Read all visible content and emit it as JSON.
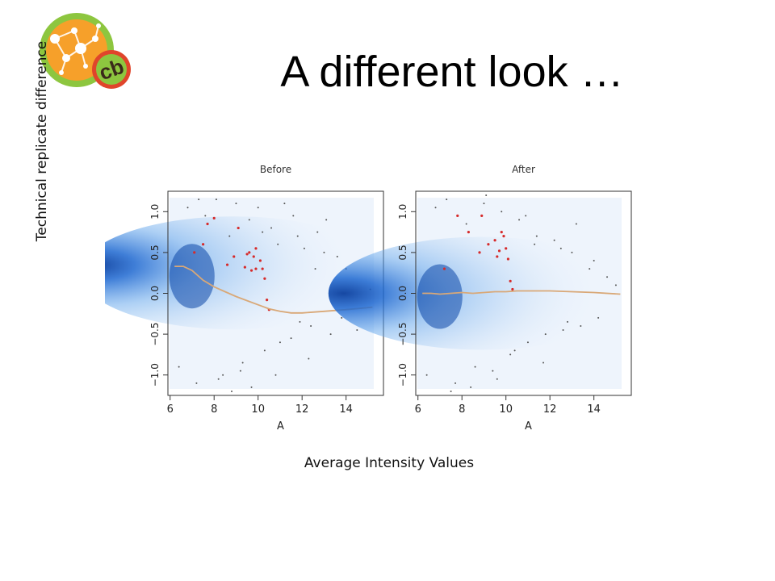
{
  "slide": {
    "title": "A different look …",
    "y_axis_caption": "Technical replicate difference",
    "x_axis_caption": "Average Intensity Values"
  },
  "logo": {
    "text": "cb",
    "icon": "network-logo-icon"
  },
  "colors": {
    "density": "#2a7fd6",
    "trend": "#d9a877",
    "outlier": "#d62b2b",
    "points": "#555555",
    "logo_orange": "#f6a02a",
    "logo_green": "#8dc63f",
    "logo_red": "#e0452b"
  },
  "chart_data": [
    {
      "type": "scatter",
      "title": "Before",
      "xlabel": "A",
      "ylabel": "",
      "xlim": [
        5.9,
        15.7
      ],
      "ylim": [
        -1.25,
        1.25
      ],
      "x_ticks": [
        6,
        8,
        10,
        12,
        14
      ],
      "y_ticks": [
        -1.0,
        -0.5,
        0.0,
        0.5,
        1.0
      ],
      "density_center": {
        "x": 6.7,
        "y": 0.25
      },
      "trend_line": {
        "x": [
          6.2,
          6.6,
          7.0,
          7.5,
          8.0,
          8.5,
          9.0,
          9.5,
          10.0,
          10.5,
          11.0,
          11.5,
          12.0,
          12.5,
          13.0,
          14.0,
          15.2
        ],
        "y": [
          0.33,
          0.33,
          0.28,
          0.16,
          0.08,
          0.02,
          -0.04,
          -0.09,
          -0.14,
          -0.19,
          -0.22,
          -0.24,
          -0.24,
          -0.23,
          -0.22,
          -0.2,
          -0.17
        ]
      },
      "highlighted_points": {
        "x": [
          7.1,
          7.5,
          7.7,
          8.0,
          8.6,
          8.9,
          9.1,
          9.4,
          9.5,
          9.6,
          9.7,
          9.8,
          9.9,
          9.9,
          10.1,
          10.2,
          10.3,
          10.4,
          10.5
        ],
        "y": [
          0.5,
          0.6,
          0.85,
          0.92,
          0.35,
          0.45,
          0.8,
          0.32,
          0.48,
          0.5,
          0.28,
          0.45,
          0.55,
          0.3,
          0.4,
          0.3,
          0.18,
          -0.08,
          -0.2
        ]
      },
      "scatter_points": {
        "x": [
          6.4,
          6.8,
          7.2,
          7.6,
          8.1,
          8.4,
          8.7,
          9.0,
          9.3,
          9.6,
          10.0,
          10.3,
          10.6,
          10.9,
          11.2,
          11.5,
          11.8,
          12.1,
          12.4,
          12.7,
          13.0,
          13.3,
          13.6,
          14.0,
          14.5,
          15.1,
          8.2,
          9.2,
          10.8,
          11.6,
          12.3,
          13.1,
          7.3,
          8.8,
          9.7,
          11.0,
          12.6,
          13.8,
          10.2,
          11.9
        ],
        "y": [
          -0.9,
          1.05,
          -1.1,
          0.95,
          1.15,
          -1.0,
          0.7,
          1.1,
          -0.85,
          0.9,
          1.05,
          -0.7,
          0.8,
          0.6,
          1.1,
          -0.55,
          0.7,
          0.55,
          -0.4,
          0.75,
          0.5,
          -0.5,
          0.45,
          0.3,
          -0.45,
          0.05,
          -1.05,
          -0.95,
          -1.0,
          0.95,
          -0.8,
          0.9,
          1.15,
          -1.2,
          -1.15,
          -0.6,
          0.3,
          -0.3,
          0.75,
          -0.35
        ]
      }
    },
    {
      "type": "scatter",
      "title": "After",
      "xlabel": "A",
      "ylabel": "",
      "xlim": [
        5.9,
        15.7
      ],
      "ylim": [
        -1.25,
        1.25
      ],
      "x_ticks": [
        6,
        8,
        10,
        12,
        14
      ],
      "y_ticks": [
        -1.0,
        -0.5,
        0.0,
        0.5,
        1.0
      ],
      "density_center": {
        "x": 6.7,
        "y": 0.0
      },
      "trend_line": {
        "x": [
          6.2,
          6.6,
          7.0,
          7.5,
          8.0,
          8.5,
          9.0,
          9.5,
          10.0,
          10.5,
          11.0,
          11.5,
          12.0,
          13.0,
          14.0,
          15.2
        ],
        "y": [
          0.0,
          0.0,
          -0.01,
          0.0,
          0.01,
          0.0,
          0.01,
          0.02,
          0.02,
          0.03,
          0.03,
          0.03,
          0.03,
          0.02,
          0.01,
          -0.01
        ]
      },
      "highlighted_points": {
        "x": [
          7.2,
          7.8,
          8.3,
          8.9,
          9.2,
          9.5,
          9.6,
          9.7,
          9.8,
          9.9,
          10.0,
          10.1,
          10.2,
          10.3,
          8.8
        ],
        "y": [
          0.3,
          0.95,
          0.75,
          0.95,
          0.6,
          0.65,
          0.45,
          0.52,
          0.75,
          0.7,
          0.55,
          0.42,
          0.15,
          0.05,
          0.5
        ]
      },
      "scatter_points": {
        "x": [
          6.4,
          6.8,
          7.3,
          7.7,
          8.2,
          8.6,
          9.0,
          9.4,
          9.8,
          10.2,
          10.6,
          11.0,
          11.4,
          11.8,
          12.2,
          12.6,
          13.0,
          13.4,
          13.8,
          14.2,
          14.6,
          15.0,
          8.4,
          9.6,
          10.9,
          11.7,
          12.5,
          13.2,
          7.5,
          9.1,
          10.4,
          11.3,
          12.8,
          14.0
        ],
        "y": [
          -1.0,
          1.05,
          1.15,
          -1.1,
          0.85,
          -0.9,
          1.1,
          -0.95,
          1.0,
          -0.75,
          0.9,
          -0.6,
          0.7,
          -0.5,
          0.65,
          -0.45,
          0.5,
          -0.4,
          0.3,
          -0.3,
          0.2,
          0.1,
          -1.15,
          -1.05,
          0.95,
          -0.85,
          0.55,
          0.85,
          -1.2,
          1.2,
          -0.7,
          0.6,
          -0.35,
          0.4
        ]
      }
    }
  ]
}
